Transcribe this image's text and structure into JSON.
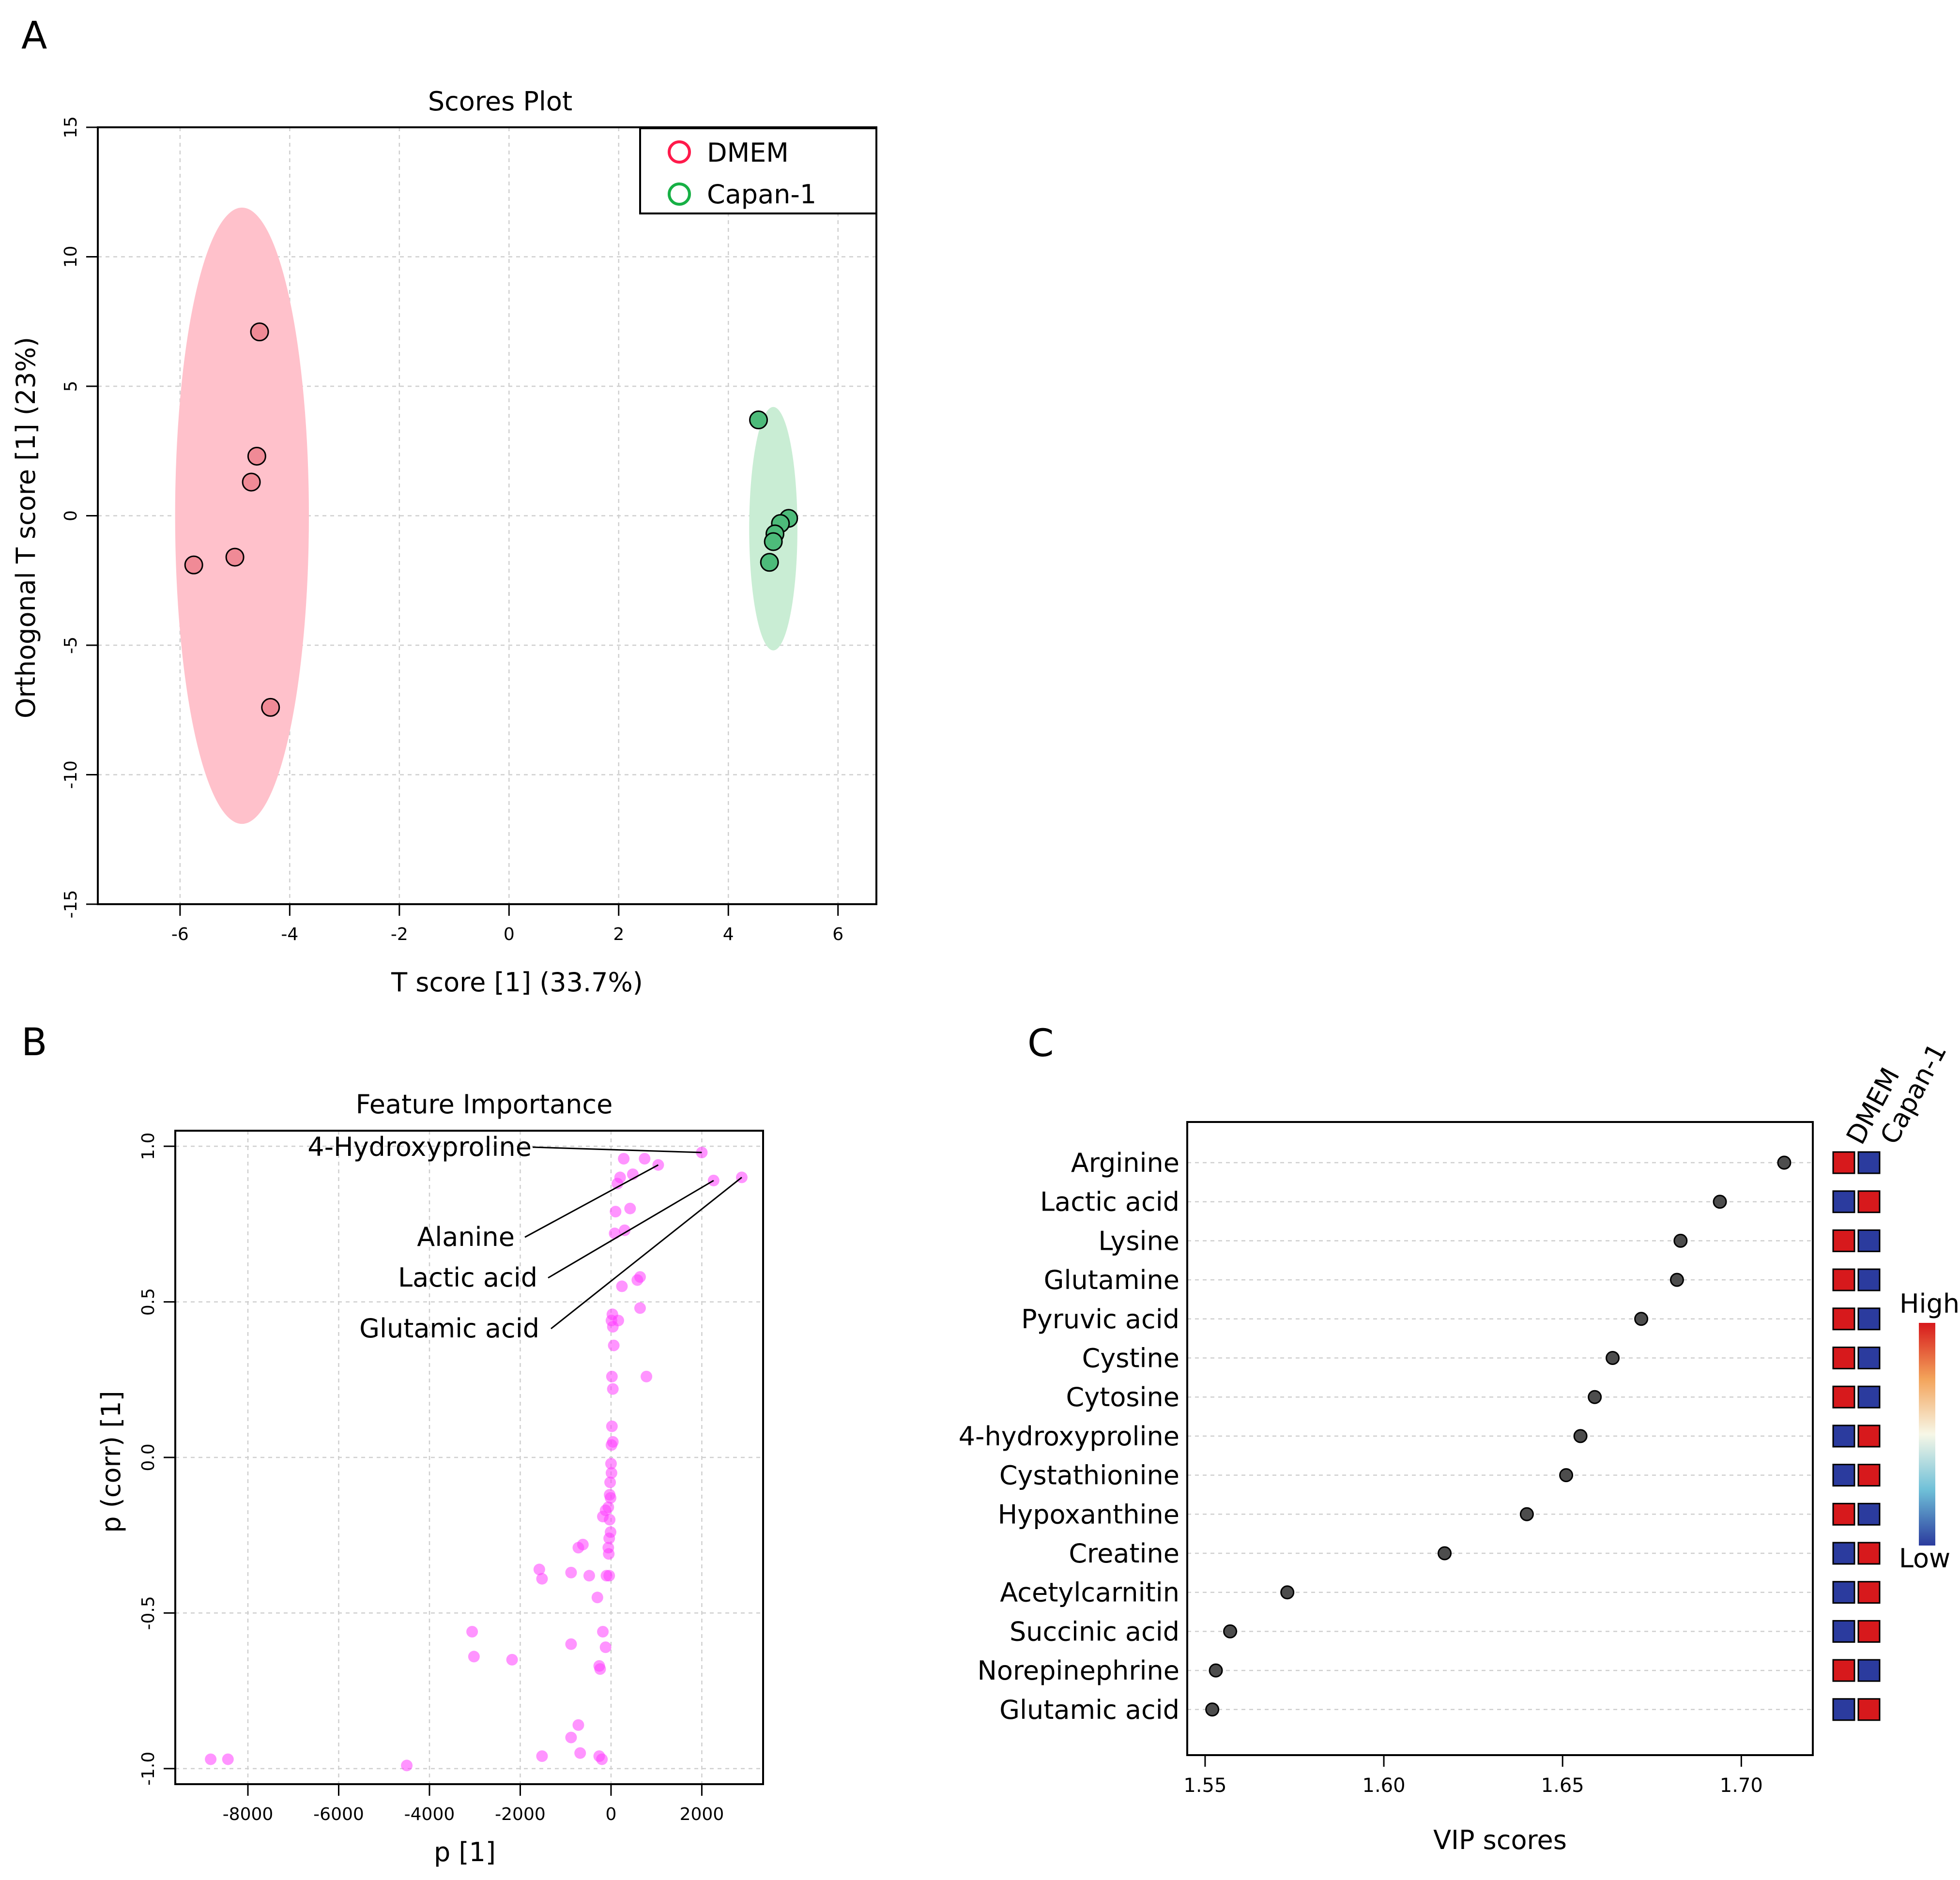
{
  "panels": {
    "a": {
      "letter": "A"
    },
    "b": {
      "letter": "B"
    },
    "c": {
      "letter": "C"
    }
  },
  "chart_data": [
    {
      "type": "scatter",
      "title": "Scores Plot",
      "xlabel": "T score [1] (33.7%)",
      "ylabel": "Orthogonal T score [1] (23%)",
      "xlim": [
        -7.5,
        6.7
      ],
      "ylim": [
        -15,
        15
      ],
      "xticks": [
        -6,
        -4,
        -2,
        0,
        2,
        4,
        6
      ],
      "yticks": [
        -15,
        -10,
        -5,
        0,
        5,
        10,
        15
      ],
      "grid": true,
      "legend_position": "top-right",
      "colors": {
        "DMEM": "#ff1a4b",
        "Capan-1": "#17b045"
      },
      "fill_colors": {
        "DMEM": "#ffc1cb",
        "Capan-1": "#c9edd4"
      },
      "point_colors": {
        "DMEM": "#f08a96",
        "Capan-1": "#4dbb7a"
      },
      "series": [
        {
          "name": "DMEM",
          "points": [
            [
              -4.55,
              7.1
            ],
            [
              -4.6,
              2.3
            ],
            [
              -4.7,
              1.3
            ],
            [
              -5.0,
              -1.6
            ],
            [
              -5.75,
              -1.9
            ],
            [
              -4.35,
              -7.4
            ]
          ],
          "ellipse": {
            "center": [
              -4.87,
              0.0
            ],
            "x_radius": 1.22,
            "y_radius": 11.9
          }
        },
        {
          "name": "Capan-1",
          "points": [
            [
              4.55,
              3.7
            ],
            [
              5.1,
              -0.1
            ],
            [
              4.95,
              -0.3
            ],
            [
              4.85,
              -0.7
            ],
            [
              4.82,
              -1.0
            ],
            [
              4.75,
              -1.8
            ]
          ],
          "ellipse": {
            "center": [
              4.82,
              -0.5
            ],
            "x_radius": 0.44,
            "y_radius": 4.7
          }
        }
      ]
    },
    {
      "type": "scatter",
      "title": "Feature Importance",
      "xlabel": "p [1]",
      "ylabel": "p (corr) [1]",
      "xlim": [
        -9600,
        3350
      ],
      "ylim": [
        -1.05,
        1.05
      ],
      "xticks": [
        -8000,
        -6000,
        -4000,
        -2000,
        0,
        2000
      ],
      "yticks": [
        -1.0,
        -0.5,
        0.0,
        0.5,
        1.0
      ],
      "grid": true,
      "point_color": "#ff3cff",
      "points": [
        [
          2000,
          0.98
        ],
        [
          280,
          0.96
        ],
        [
          740,
          0.96
        ],
        [
          1040,
          0.94
        ],
        [
          480,
          0.91
        ],
        [
          200,
          0.9
        ],
        [
          140,
          0.88
        ],
        [
          2260,
          0.89
        ],
        [
          2880,
          0.9
        ],
        [
          420,
          0.8
        ],
        [
          100,
          0.79
        ],
        [
          300,
          0.73
        ],
        [
          80,
          0.72
        ],
        [
          640,
          0.58
        ],
        [
          580,
          0.57
        ],
        [
          240,
          0.55
        ],
        [
          640,
          0.48
        ],
        [
          30,
          0.46
        ],
        [
          160,
          0.44
        ],
        [
          10,
          0.44
        ],
        [
          40,
          0.42
        ],
        [
          60,
          0.36
        ],
        [
          780,
          0.26
        ],
        [
          20,
          0.26
        ],
        [
          40,
          0.22
        ],
        [
          20,
          0.1
        ],
        [
          40,
          0.05
        ],
        [
          10,
          0.04
        ],
        [
          0,
          -0.02
        ],
        [
          10,
          -0.05
        ],
        [
          -20,
          -0.08
        ],
        [
          -30,
          -0.12
        ],
        [
          -10,
          -0.13
        ],
        [
          -60,
          -0.16
        ],
        [
          -120,
          -0.17
        ],
        [
          -180,
          -0.19
        ],
        [
          -30,
          -0.2
        ],
        [
          -10,
          -0.24
        ],
        [
          -40,
          -0.26
        ],
        [
          -60,
          -0.29
        ],
        [
          -50,
          -0.31
        ],
        [
          -620,
          -0.28
        ],
        [
          -720,
          -0.29
        ],
        [
          -1580,
          -0.36
        ],
        [
          -1520,
          -0.39
        ],
        [
          -880,
          -0.37
        ],
        [
          -480,
          -0.38
        ],
        [
          -100,
          -0.38
        ],
        [
          -40,
          -0.38
        ],
        [
          -300,
          -0.45
        ],
        [
          -3060,
          -0.56
        ],
        [
          -3020,
          -0.64
        ],
        [
          -880,
          -0.6
        ],
        [
          -180,
          -0.56
        ],
        [
          -120,
          -0.61
        ],
        [
          -2180,
          -0.65
        ],
        [
          -260,
          -0.67
        ],
        [
          -240,
          -0.68
        ],
        [
          -720,
          -0.86
        ],
        [
          -880,
          -0.9
        ],
        [
          -680,
          -0.95
        ],
        [
          -1520,
          -0.96
        ],
        [
          -260,
          -0.96
        ],
        [
          -200,
          -0.97
        ],
        [
          -8820,
          -0.97
        ],
        [
          -8440,
          -0.97
        ],
        [
          -4500,
          -0.99
        ]
      ],
      "annotations": [
        {
          "label": "4-Hydroxyproline",
          "point": [
            2000,
            0.98
          ]
        },
        {
          "label": "Alanine",
          "point": [
            1040,
            0.94
          ]
        },
        {
          "label": "Lactic acid",
          "point": [
            2260,
            0.89
          ]
        },
        {
          "label": "Glutamic acid",
          "point": [
            2880,
            0.9
          ]
        }
      ]
    },
    {
      "type": "dot",
      "xlabel": "VIP scores",
      "xlim": [
        1.545,
        1.72
      ],
      "xticks": [
        1.55,
        1.6,
        1.65,
        1.7
      ],
      "groups": [
        "DMEM",
        "Capan-1"
      ],
      "point_color": "#4d4d4d",
      "features": [
        "Arginine",
        "Lactic acid",
        "Lysine",
        "Glutamine",
        "Pyruvic acid",
        "Cystine",
        "Cytosine",
        "4-hydroxyproline",
        "Cystathionine",
        "Hypoxanthine",
        "Creatine",
        "Acetylcarnitin",
        "Succinic acid",
        "Norepinephrine",
        "Glutamic acid"
      ],
      "values": [
        1.712,
        1.694,
        1.683,
        1.682,
        1.672,
        1.664,
        1.659,
        1.655,
        1.651,
        1.64,
        1.617,
        1.573,
        1.557,
        1.553,
        1.552
      ],
      "heat": [
        [
          "high",
          "low"
        ],
        [
          "low",
          "high"
        ],
        [
          "high",
          "low"
        ],
        [
          "high",
          "low"
        ],
        [
          "high",
          "low"
        ],
        [
          "high",
          "low"
        ],
        [
          "high",
          "low"
        ],
        [
          "low",
          "high"
        ],
        [
          "low",
          "high"
        ],
        [
          "high",
          "low"
        ],
        [
          "low",
          "high"
        ],
        [
          "low",
          "high"
        ],
        [
          "low",
          "high"
        ],
        [
          "high",
          "low"
        ],
        [
          "low",
          "high"
        ]
      ],
      "heat_colors": {
        "high": "#d7191c",
        "low": "#2b3b9e"
      },
      "colorbar": {
        "high_label": "High",
        "low_label": "Low",
        "stops": [
          "#d7191c",
          "#f3a35a",
          "#f7f7e7",
          "#6fc0d8",
          "#2b3b9e"
        ]
      }
    }
  ]
}
